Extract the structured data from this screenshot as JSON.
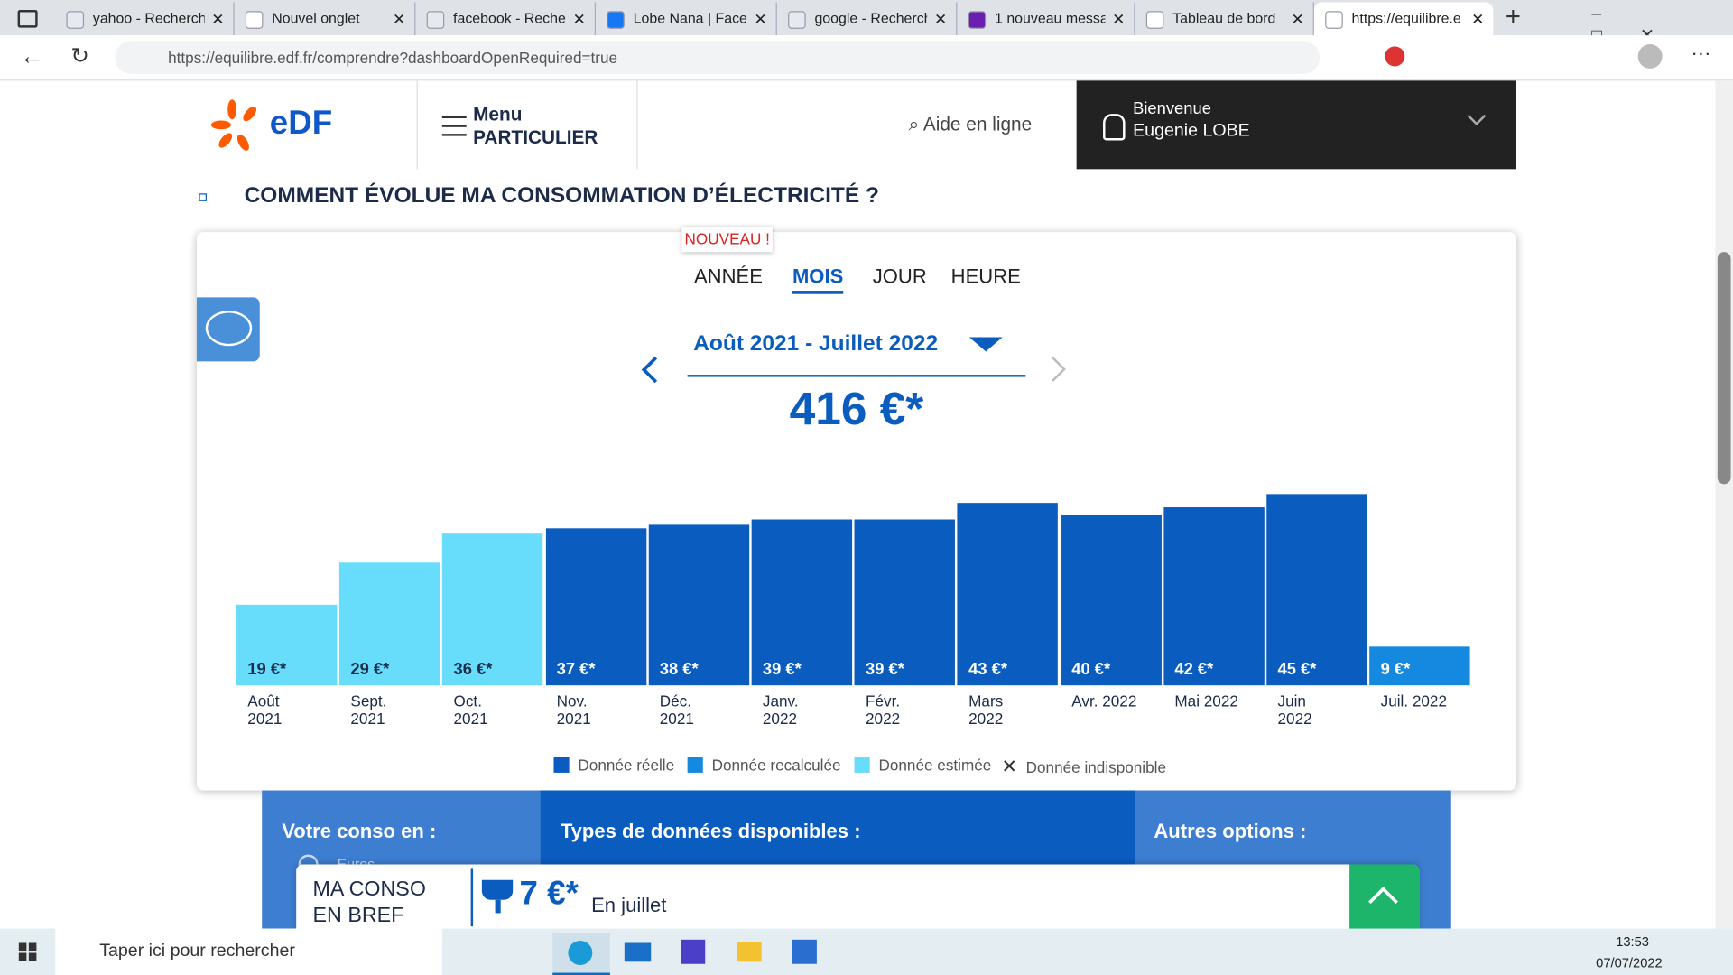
{
  "browser": {
    "tabs": [
      "yahoo - Recherch",
      "Nouvel onglet",
      "facebook - Reche",
      "Lobe Nana | Facel",
      "google - Recherch",
      "1 nouveau messa",
      "Tableau de bord",
      "https://equilibre.e"
    ],
    "active_tab": 7,
    "url": "https://equilibre.edf.fr/comprendre?dashboardOpenRequired=true"
  },
  "header": {
    "logo": "eDF",
    "menu": "Menu",
    "menu_sub": "PARTICULIER",
    "help": "Aide en ligne",
    "welcome": "Bienvenue",
    "user": "Eugenie LOBE"
  },
  "section_title": "COMMENT ÉVOLUE MA CONSOMMATION D’ÉLECTRICITÉ ?",
  "badge": "NOUVEAU !",
  "views": [
    "ANNÉE",
    "MOIS",
    "JOUR",
    "HEURE"
  ],
  "active_view": 1,
  "chart_data": {
    "type": "bar",
    "period": "Août 2021 - Juillet 2022",
    "total": "416 €*",
    "categories": [
      "Août 2021",
      "Sept. 2021",
      "Oct. 2021",
      "Nov. 2021",
      "Déc. 2021",
      "Janv. 2022",
      "Févr. 2022",
      "Mars 2022",
      "Avr. 2022",
      "Mai 2022",
      "Juin 2022",
      "Juil. 2022"
    ],
    "values": [
      19,
      29,
      36,
      37,
      38,
      39,
      39,
      43,
      40,
      42,
      45,
      9
    ],
    "value_labels": [
      "19 €*",
      "29 €*",
      "36 €*",
      "37 €*",
      "38 €*",
      "39 €*",
      "39 €*",
      "43 €*",
      "40 €*",
      "42 €*",
      "45 €*",
      "9 €*"
    ],
    "colors": [
      "#67dcfb",
      "#67dcfb",
      "#67dcfb",
      "#0a5cbf",
      "#0a5cbf",
      "#0a5cbf",
      "#0a5cbf",
      "#0a5cbf",
      "#0a5cbf",
      "#0a5cbf",
      "#0a5cbf",
      "#1589e0"
    ],
    "legend": [
      {
        "name": "Donnée réelle",
        "color": "#0a5cbf"
      },
      {
        "name": "Donnée recalculée",
        "color": "#1589e0"
      },
      {
        "name": "Donnée estimée",
        "color": "#67dcfb"
      }
    ],
    "unavailable": "Donnée indisponible"
  },
  "lower": {
    "conso": "Votre conso en :",
    "unit": "Euros",
    "types": "Types de données disponibles :",
    "options": "Autres options :"
  },
  "sticky": {
    "title": "MA CONSO",
    "title2": "EN BREF",
    "value": "7 €*",
    "caption": "En juillet"
  },
  "taskbar": {
    "search": "Taper ici pour rechercher",
    "time": "13:53",
    "date": "07/07/2022"
  }
}
